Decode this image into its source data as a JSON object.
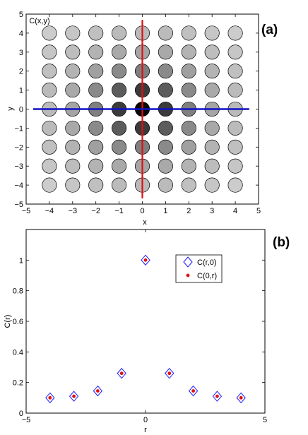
{
  "chart_data": [
    {
      "panel_label": "(a)",
      "type": "heatmap",
      "title": "C(x,y)",
      "xlabel": "x",
      "ylabel": "y",
      "xlim": [
        -5,
        5
      ],
      "ylim": [
        -5,
        5
      ],
      "xticks": [
        -5,
        -4,
        -3,
        -2,
        -1,
        0,
        1,
        2,
        3,
        4,
        5
      ],
      "yticks": [
        -5,
        -4,
        -3,
        -2,
        -1,
        0,
        1,
        2,
        3,
        4,
        5
      ],
      "grid_x": [
        -4,
        -3,
        -2,
        -1,
        0,
        1,
        2,
        3,
        4
      ],
      "grid_y": [
        -4,
        -3,
        -2,
        -1,
        0,
        1,
        2,
        3,
        4
      ],
      "grayscale": "darker means larger C(x,y)",
      "lines": [
        {
          "orientation": "vertical",
          "at": 0,
          "from": -4.7,
          "to": 4.7,
          "color": "#e01010"
        },
        {
          "orientation": "horizontal",
          "at": 0,
          "from": -4.7,
          "to": 4.6,
          "color": "#1010c8"
        }
      ],
      "colors": {
        "circle_edge": "#000000",
        "red_line": "#e01010",
        "blue_line": "#1010c8"
      }
    },
    {
      "panel_label": "(b)",
      "type": "scatter",
      "xlabel": "r",
      "ylabel": "C(r)",
      "xlim": [
        -5,
        5
      ],
      "ylim": [
        0,
        1.2
      ],
      "xticks": [
        -5,
        0,
        5
      ],
      "yticks": [
        0,
        0.2,
        0.4,
        0.6,
        0.8,
        1
      ],
      "x": [
        -4,
        -3,
        -2,
        -1,
        0,
        1,
        2,
        3,
        4
      ],
      "series": [
        {
          "name": "C(r,0)",
          "marker": "diamond",
          "color": "#1a1aff",
          "values": [
            0.1,
            0.11,
            0.145,
            0.26,
            1.0,
            0.26,
            0.145,
            0.11,
            0.1
          ]
        },
        {
          "name": "C(0,r)",
          "marker": "dot",
          "color": "#e01010",
          "values": [
            0.1,
            0.11,
            0.145,
            0.26,
            1.0,
            0.26,
            0.145,
            0.11,
            0.1
          ]
        }
      ],
      "legend_position": "top-right"
    }
  ]
}
